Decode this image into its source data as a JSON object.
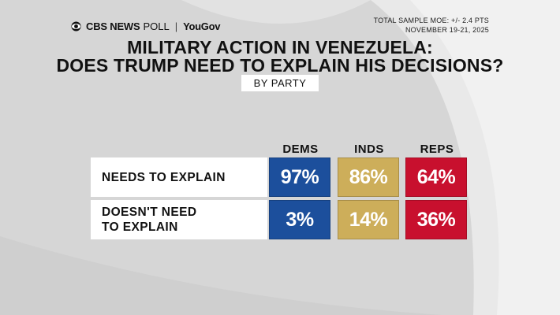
{
  "brand": {
    "cbs": "CBS NEWS",
    "poll": "POLL",
    "separator": "|",
    "partner": "YouGov"
  },
  "moe": {
    "line1": "TOTAL SAMPLE MOE: +/- 2.4 PTS",
    "line2": "NOVEMBER 19-21, 2025"
  },
  "chart_data": {
    "type": "table",
    "title": "MILITARY ACTION IN VENEZUELA:",
    "title_line2": "DOES TRUMP NEED TO EXPLAIN HIS DECISIONS?",
    "subtitle": "BY PARTY",
    "columns": [
      "DEMS",
      "INDS",
      "REPS"
    ],
    "column_colors": [
      "#1c4f9c",
      "#cdae5a",
      "#c8102e"
    ],
    "rows": [
      {
        "label_line1": "NEEDS TO EXPLAIN",
        "label_line2": "",
        "values": [
          97,
          86,
          64
        ],
        "display": [
          "97%",
          "86%",
          "64%"
        ]
      },
      {
        "label_line1": "DOESN'T NEED",
        "label_line2": "TO EXPLAIN",
        "values": [
          3,
          14,
          36
        ],
        "display": [
          "3%",
          "14%",
          "36%"
        ]
      }
    ],
    "unit": "%"
  }
}
